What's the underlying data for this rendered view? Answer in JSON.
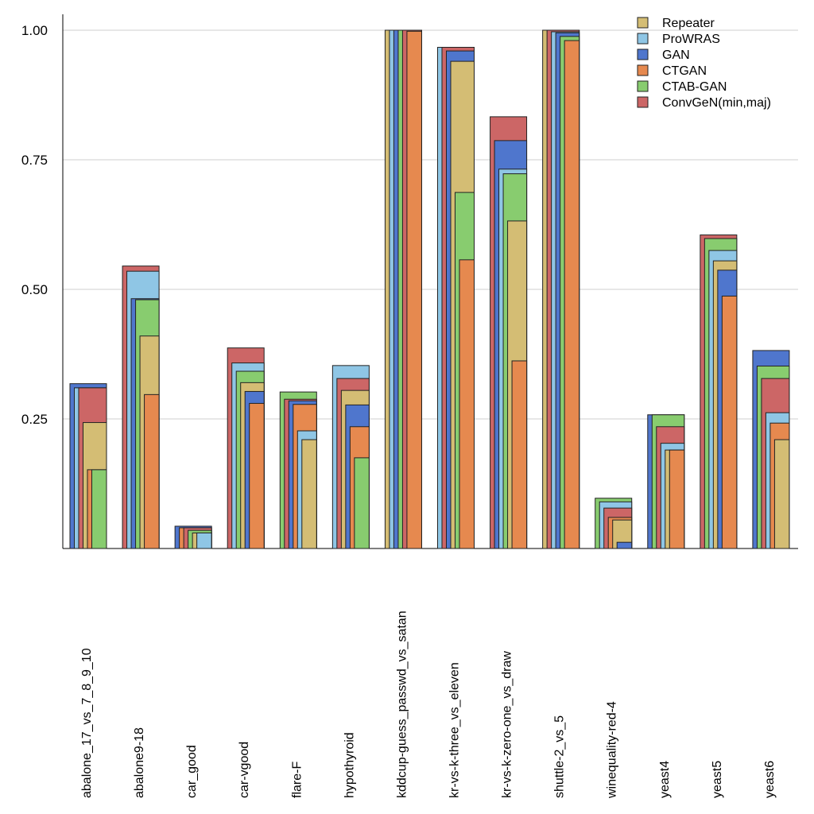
{
  "chart_data": {
    "type": "bar",
    "title": "",
    "xlabel": "",
    "ylabel": "",
    "ylim": [
      0,
      1.0
    ],
    "yticks": [
      "0.25",
      "0.50",
      "0.75",
      "1.00"
    ],
    "grid": true,
    "legend_position": "top-right",
    "categories": [
      "abalone_17_vs_7_8_9_10",
      "abalone9-18",
      "car_good",
      "car-vgood",
      "flare-F",
      "hypothyroid",
      "kddcup-guess_passwd_vs_satan",
      "kr-vs-k-three_vs_eleven",
      "kr-vs-k-zero-one_vs_draw",
      "shuttle-2_vs_5",
      "winequality-red-4",
      "yeast4",
      "yeast5",
      "yeast6"
    ],
    "series": [
      {
        "name": "Repeater",
        "color": "#d4bd74",
        "values": [
          0.243,
          0.41,
          0.03,
          0.32,
          0.21,
          0.305,
          1.0,
          0.94,
          0.632,
          1.0,
          0.055,
          0.19,
          0.555,
          0.21
        ]
      },
      {
        "name": "ProWRAS",
        "color": "#8fc6e5",
        "values": [
          0.31,
          0.535,
          0.03,
          0.358,
          0.227,
          0.353,
          1.0,
          0.967,
          0.732,
          0.997,
          0.09,
          0.203,
          0.575,
          0.262
        ]
      },
      {
        "name": "GAN",
        "color": "#4f76cd",
        "values": [
          0.318,
          0.482,
          0.043,
          0.303,
          0.285,
          0.277,
          1.0,
          0.96,
          0.787,
          0.995,
          0.012,
          0.258,
          0.537,
          0.382
        ]
      },
      {
        "name": "CTGAN",
        "color": "#e6894f",
        "values": [
          0.152,
          0.297,
          0.04,
          0.28,
          0.278,
          0.235,
          0.998,
          0.557,
          0.362,
          0.98,
          0.06,
          0.19,
          0.487,
          0.242
        ]
      },
      {
        "name": "CTAB-GAN",
        "color": "#88cc6f",
        "values": [
          0.152,
          0.48,
          0.035,
          0.342,
          0.302,
          0.175,
          1.0,
          0.687,
          0.723,
          0.988,
          0.097,
          0.258,
          0.598,
          0.352
        ]
      },
      {
        "name": "ConvGeN(min,maj)",
        "color": "#cc6666",
        "values": [
          0.31,
          0.545,
          0.04,
          0.387,
          0.288,
          0.328,
          1.0,
          0.967,
          0.833,
          1.0,
          0.078,
          0.235,
          0.605,
          0.328
        ]
      }
    ]
  }
}
